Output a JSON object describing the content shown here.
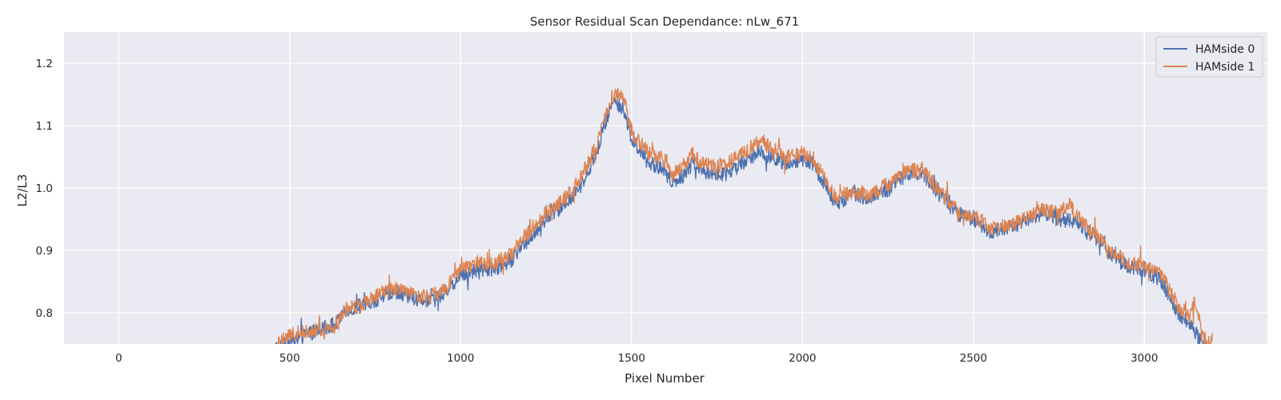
{
  "chart_data": {
    "type": "line",
    "title": "Sensor Residual Scan Dependance: nLw_671",
    "xlabel": "Pixel Number",
    "ylabel": "L2/L3",
    "xlim": [
      -160,
      3360
    ],
    "ylim": [
      0.75,
      1.25
    ],
    "xticks": [
      0,
      500,
      1000,
      1500,
      2000,
      2500,
      3000
    ],
    "yticks": [
      0.8,
      0.9,
      1.0,
      1.1,
      1.2
    ],
    "xtick_labels": [
      "0",
      "500",
      "1000",
      "1500",
      "2000",
      "2500",
      "3000"
    ],
    "ytick_labels": [
      "0.8",
      "0.9",
      "1.0",
      "1.1",
      "1.2"
    ],
    "grid": true,
    "legend_position": "top-right",
    "series": [
      {
        "name": "HAMside 0",
        "color": "#4c72b0",
        "x": [
          450,
          500,
          550,
          600,
          640,
          660,
          700,
          750,
          800,
          850,
          900,
          950,
          1000,
          1050,
          1100,
          1150,
          1200,
          1250,
          1300,
          1350,
          1400,
          1420,
          1440,
          1460,
          1480,
          1500,
          1550,
          1600,
          1620,
          1650,
          1680,
          1700,
          1750,
          1800,
          1850,
          1880,
          1900,
          1950,
          2000,
          2030,
          2050,
          2080,
          2100,
          2150,
          2200,
          2250,
          2300,
          2350,
          2400,
          2450,
          2500,
          2550,
          2600,
          2650,
          2700,
          2750,
          2800,
          2850,
          2900,
          2950,
          3000,
          3050,
          3100,
          3130,
          3160,
          3180
        ],
        "y": [
          0.74,
          0.755,
          0.765,
          0.775,
          0.785,
          0.8,
          0.81,
          0.82,
          0.835,
          0.825,
          0.82,
          0.83,
          0.86,
          0.87,
          0.87,
          0.885,
          0.92,
          0.95,
          0.97,
          1.0,
          1.06,
          1.1,
          1.13,
          1.135,
          1.12,
          1.08,
          1.04,
          1.03,
          1.005,
          1.02,
          1.04,
          1.03,
          1.02,
          1.03,
          1.05,
          1.06,
          1.05,
          1.04,
          1.045,
          1.04,
          1.02,
          0.99,
          0.975,
          0.99,
          0.985,
          1.0,
          1.02,
          1.025,
          0.99,
          0.96,
          0.95,
          0.93,
          0.935,
          0.945,
          0.96,
          0.95,
          0.945,
          0.925,
          0.895,
          0.875,
          0.87,
          0.85,
          0.8,
          0.785,
          0.76,
          0.745
        ]
      },
      {
        "name": "HAMside 1",
        "color": "#dd8452",
        "x": [
          460,
          500,
          550,
          600,
          640,
          660,
          700,
          750,
          800,
          850,
          900,
          950,
          1000,
          1050,
          1100,
          1150,
          1200,
          1250,
          1300,
          1350,
          1400,
          1420,
          1440,
          1460,
          1480,
          1500,
          1550,
          1600,
          1620,
          1650,
          1680,
          1700,
          1750,
          1800,
          1850,
          1880,
          1900,
          1950,
          2000,
          2030,
          2050,
          2080,
          2100,
          2150,
          2200,
          2250,
          2300,
          2350,
          2400,
          2450,
          2500,
          2550,
          2600,
          2650,
          2700,
          2750,
          2780,
          2800,
          2850,
          2900,
          2950,
          3000,
          3050,
          3100,
          3130,
          3150,
          3170,
          3195,
          3200
        ],
        "y": [
          0.75,
          0.765,
          0.77,
          0.775,
          0.78,
          0.805,
          0.81,
          0.825,
          0.84,
          0.83,
          0.825,
          0.835,
          0.87,
          0.88,
          0.88,
          0.895,
          0.93,
          0.96,
          0.98,
          1.015,
          1.07,
          1.11,
          1.145,
          1.15,
          1.14,
          1.09,
          1.055,
          1.045,
          1.02,
          1.035,
          1.055,
          1.04,
          1.035,
          1.045,
          1.065,
          1.075,
          1.07,
          1.05,
          1.055,
          1.05,
          1.03,
          1.0,
          0.985,
          0.995,
          0.99,
          1.005,
          1.025,
          1.03,
          0.995,
          0.965,
          0.955,
          0.935,
          0.94,
          0.95,
          0.965,
          0.96,
          0.975,
          0.955,
          0.93,
          0.9,
          0.88,
          0.875,
          0.86,
          0.81,
          0.795,
          0.82,
          0.76,
          0.75,
          0.77
        ]
      }
    ]
  }
}
